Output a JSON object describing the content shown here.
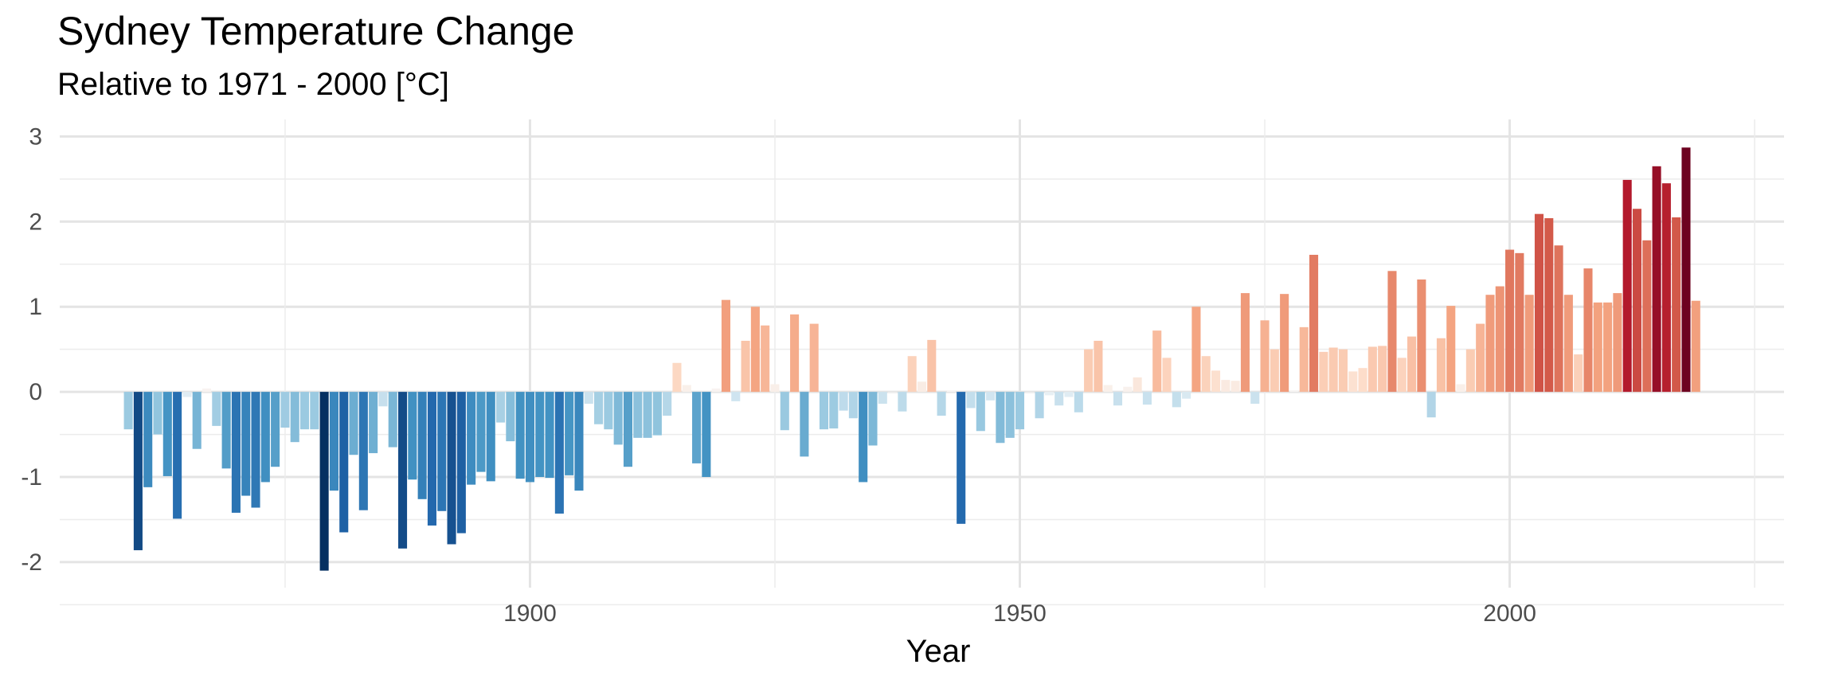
{
  "chart_data": {
    "type": "bar",
    "title": "Sydney Temperature Change",
    "subtitle": "Relative to 1971 - 2000 [°C]",
    "xlabel": "Year",
    "ylabel": "",
    "x_ticks": [
      1900,
      1950,
      2000
    ],
    "y_ticks": [
      -2,
      -1,
      0,
      1,
      2,
      3
    ],
    "xlim": [
      1852,
      2028
    ],
    "ylim": [
      -2.3,
      3.2
    ],
    "grid": true,
    "legend": "none",
    "color_scale": "RdBu (blue = cooler, red = warmer)",
    "start_year": 1859,
    "values": [
      -0.44,
      -1.86,
      -1.12,
      -0.5,
      -0.99,
      -1.49,
      -0.06,
      -0.67,
      0.04,
      -0.4,
      -0.9,
      -1.42,
      -1.22,
      -1.36,
      -1.06,
      -0.88,
      -0.42,
      -0.59,
      -0.44,
      -0.44,
      -2.1,
      -1.16,
      -1.65,
      -0.74,
      -1.39,
      -0.72,
      -0.17,
      -0.65,
      -1.84,
      -1.03,
      -1.26,
      -1.57,
      -1.4,
      -1.79,
      -1.66,
      -1.09,
      -0.94,
      -1.05,
      -0.36,
      -0.58,
      -1.02,
      -1.06,
      -1.0,
      -1.01,
      -1.43,
      -0.98,
      -1.16,
      -0.14,
      -0.38,
      -0.44,
      -0.62,
      -0.88,
      -0.54,
      -0.54,
      -0.51,
      -0.28,
      0.34,
      0.08,
      -0.84,
      -1.0,
      0.04,
      1.08,
      -0.11,
      0.6,
      1.0,
      0.78,
      0.09,
      -0.45,
      0.91,
      -0.76,
      0.8,
      -0.44,
      -0.43,
      -0.22,
      -0.31,
      -1.06,
      -0.63,
      -0.14,
      0.0,
      -0.23,
      0.42,
      0.12,
      0.61,
      -0.28,
      0.02,
      -1.55,
      -0.19,
      -0.46,
      -0.1,
      -0.6,
      -0.54,
      -0.44,
      0.0,
      -0.31,
      -0.04,
      -0.16,
      -0.06,
      -0.24,
      0.5,
      0.6,
      0.08,
      -0.16,
      0.06,
      0.17,
      -0.15,
      0.72,
      0.4,
      -0.18,
      -0.08,
      1.0,
      0.42,
      0.25,
      0.14,
      0.13,
      1.16,
      -0.14,
      0.84,
      0.5,
      1.15,
      0.02,
      0.76,
      1.61,
      0.47,
      0.52,
      0.5,
      0.24,
      0.28,
      0.53,
      0.54,
      1.42,
      0.4,
      0.65,
      1.32,
      -0.3,
      0.63,
      1.01,
      0.09,
      0.5,
      0.8,
      1.14,
      1.24,
      1.67,
      1.63,
      1.14,
      2.09,
      2.04,
      1.72,
      1.14,
      0.44,
      1.45,
      1.05,
      1.05,
      1.16,
      2.49,
      2.15,
      1.78,
      2.65,
      2.45,
      2.05,
      2.87,
      1.07
    ]
  }
}
